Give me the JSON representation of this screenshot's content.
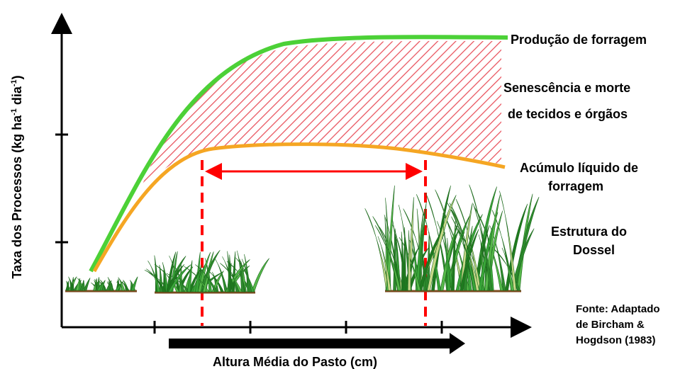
{
  "y_axis_label": [
    "Taxa dos Processos (kg ha",
    "-1",
    " dia",
    "-1",
    ")"
  ],
  "x_axis_label": "Altura Média do Pasto (cm)",
  "curves": {
    "production": "Produção de forragem",
    "senescence": [
      "Senescência e morte",
      "de tecidos e órgãos"
    ],
    "net_accumulation": [
      "Acúmulo líquido de",
      "forragem"
    ],
    "canopy": [
      "Estrutura do",
      "Dossel"
    ]
  },
  "source": [
    "Fonte: Adaptado",
    "de Bircham &",
    "Hogdson (1983)"
  ]
}
